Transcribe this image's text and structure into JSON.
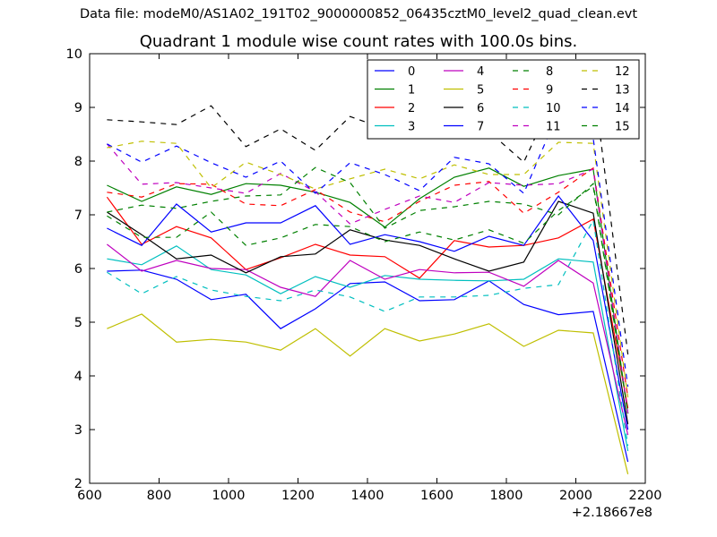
{
  "header": {
    "data_file_line": "Data file: modeM0/AS1A02_191T02_9000000852_06435cztM0_level2_quad_clean.evt"
  },
  "chart_data": {
    "type": "line",
    "title": "Quadrant 1 module wise count rates with 100.0s bins.",
    "xlabel": "",
    "ylabel": "",
    "x_offset_label": "+2.18667e8",
    "xlim": [
      600,
      2200
    ],
    "ylim": [
      2,
      10
    ],
    "xticks": [
      "600",
      "800",
      "1000",
      "1200",
      "1400",
      "1600",
      "1800",
      "2000",
      "2200"
    ],
    "yticks": [
      "2",
      "3",
      "4",
      "5",
      "6",
      "7",
      "8",
      "9",
      "10"
    ],
    "grid": false,
    "legend_position": "top-right",
    "x": [
      650,
      750,
      850,
      950,
      1050,
      1150,
      1250,
      1350,
      1450,
      1550,
      1650,
      1750,
      1850,
      1950,
      2050,
      2150
    ],
    "series": [
      {
        "name": "0",
        "color": "#0000ff",
        "dash": "solid",
        "values": [
          5.95,
          5.97,
          5.8,
          5.42,
          5.52,
          4.88,
          5.25,
          5.72,
          5.75,
          5.4,
          5.42,
          5.77,
          5.33,
          5.14,
          5.2,
          2.4
        ]
      },
      {
        "name": "1",
        "color": "#008000",
        "dash": "solid",
        "values": [
          7.55,
          7.25,
          7.52,
          7.38,
          7.58,
          7.55,
          7.42,
          7.23,
          6.77,
          7.3,
          7.7,
          7.87,
          7.53,
          7.73,
          7.85,
          3.3
        ]
      },
      {
        "name": "2",
        "color": "#ff0000",
        "dash": "solid",
        "values": [
          7.33,
          6.45,
          6.78,
          6.57,
          5.98,
          6.2,
          6.45,
          6.25,
          6.22,
          5.82,
          6.52,
          6.4,
          6.43,
          6.57,
          6.92,
          3.4
        ]
      },
      {
        "name": "3",
        "color": "#00bfbf",
        "dash": "solid",
        "values": [
          6.18,
          6.07,
          6.42,
          5.98,
          5.88,
          5.53,
          5.85,
          5.65,
          5.87,
          5.8,
          5.78,
          5.77,
          5.8,
          6.18,
          6.12,
          2.6
        ]
      },
      {
        "name": "4",
        "color": "#bf00bf",
        "dash": "solid",
        "values": [
          6.45,
          5.95,
          6.15,
          6.0,
          5.98,
          5.65,
          5.48,
          6.15,
          5.8,
          5.98,
          5.92,
          5.93,
          5.67,
          6.15,
          5.73,
          2.9
        ]
      },
      {
        "name": "5",
        "color": "#bfbf00",
        "dash": "solid",
        "values": [
          4.88,
          5.15,
          4.63,
          4.68,
          4.63,
          4.48,
          4.88,
          4.37,
          4.88,
          4.65,
          4.78,
          4.97,
          4.55,
          4.85,
          4.8,
          2.17
        ]
      },
      {
        "name": "6",
        "color": "#000000",
        "dash": "solid",
        "values": [
          7.05,
          6.63,
          6.18,
          6.25,
          5.92,
          6.22,
          6.27,
          6.72,
          6.53,
          6.43,
          6.18,
          5.95,
          6.12,
          7.25,
          7.03,
          3.1
        ]
      },
      {
        "name": "7",
        "color": "#0000ff",
        "dash": "solid",
        "values": [
          6.75,
          6.43,
          7.2,
          6.68,
          6.85,
          6.85,
          7.17,
          6.45,
          6.63,
          6.5,
          6.32,
          6.6,
          6.43,
          7.35,
          6.52,
          3.0
        ]
      },
      {
        "name": "8",
        "color": "#008000",
        "dash": "dashed",
        "values": [
          6.98,
          6.58,
          6.58,
          7.05,
          6.43,
          6.57,
          6.82,
          6.78,
          6.5,
          6.68,
          6.53,
          6.72,
          6.47,
          7.08,
          7.53,
          3.3
        ]
      },
      {
        "name": "9",
        "color": "#ff0000",
        "dash": "dashed",
        "values": [
          7.42,
          7.33,
          7.58,
          7.57,
          7.2,
          7.17,
          7.47,
          7.05,
          6.87,
          7.25,
          7.55,
          7.62,
          7.03,
          7.42,
          7.87,
          3.6
        ]
      },
      {
        "name": "10",
        "color": "#00bfbf",
        "dash": "dashed",
        "values": [
          5.93,
          5.53,
          5.85,
          5.6,
          5.48,
          5.4,
          5.6,
          5.47,
          5.2,
          5.47,
          5.47,
          5.5,
          5.63,
          5.7,
          6.9,
          2.7
        ]
      },
      {
        "name": "11",
        "color": "#bf00bf",
        "dash": "dashed",
        "values": [
          8.32,
          7.57,
          7.6,
          7.5,
          7.4,
          7.77,
          7.43,
          6.83,
          7.1,
          7.35,
          7.23,
          7.6,
          7.55,
          7.58,
          7.85,
          3.3
        ]
      },
      {
        "name": "12",
        "color": "#bfbf00",
        "dash": "dashed",
        "values": [
          8.25,
          8.37,
          8.33,
          7.5,
          7.98,
          7.75,
          7.48,
          7.67,
          7.85,
          7.67,
          7.93,
          7.75,
          7.75,
          8.35,
          8.33,
          3.6
        ]
      },
      {
        "name": "13",
        "color": "#000000",
        "dash": "dashed",
        "values": [
          8.77,
          8.73,
          8.68,
          9.03,
          8.27,
          8.6,
          8.2,
          8.83,
          8.6,
          8.5,
          8.95,
          8.55,
          7.98,
          9.37,
          9.5,
          4.4
        ]
      },
      {
        "name": "14",
        "color": "#0000ff",
        "dash": "dashed",
        "values": [
          8.32,
          7.98,
          8.28,
          7.97,
          7.7,
          8.0,
          7.4,
          7.97,
          7.75,
          7.45,
          8.07,
          7.95,
          7.4,
          8.92,
          8.42,
          3.8
        ]
      },
      {
        "name": "15",
        "color": "#008000",
        "dash": "dashed",
        "values": [
          7.05,
          7.18,
          7.12,
          7.25,
          7.35,
          7.37,
          7.88,
          7.6,
          6.75,
          7.08,
          7.15,
          7.25,
          7.2,
          7.0,
          7.58,
          3.3
        ]
      }
    ]
  }
}
